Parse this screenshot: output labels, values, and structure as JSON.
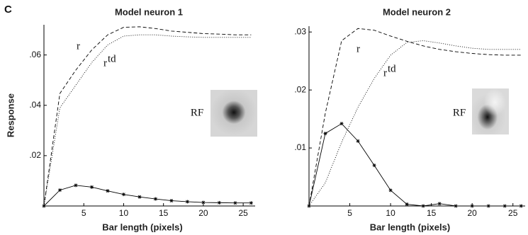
{
  "panel_label": "C",
  "chart_data": [
    {
      "type": "line",
      "title": "Model neuron 1",
      "x_label": "Bar length (pixels)",
      "y_label": "Response",
      "inset_label": "RF",
      "x": [
        0,
        2,
        4,
        6,
        8,
        10,
        12,
        14,
        16,
        18,
        20,
        22,
        24,
        26
      ],
      "xlim": [
        0,
        26.5
      ],
      "xticks": [
        5,
        10,
        15,
        20,
        25
      ],
      "ylim": [
        0,
        0.072
      ],
      "yticks": [
        {
          "value": 0.02,
          "label": ".02"
        },
        {
          "value": 0.04,
          "label": ".04"
        },
        {
          "value": 0.06,
          "label": ".06"
        }
      ],
      "series": [
        {
          "name": "r",
          "color": "#000000",
          "style": "dashed",
          "values": [
            0,
            0.0447,
            0.054,
            0.062,
            0.068,
            0.071,
            0.0712,
            0.0705,
            0.0695,
            0.069,
            0.0685,
            0.0683,
            0.068,
            0.068
          ]
        },
        {
          "name": "r",
          "superscript": "td",
          "color": "#000000",
          "style": "dotted",
          "values": [
            0,
            0.039,
            0.048,
            0.057,
            0.064,
            0.0675,
            0.068,
            0.068,
            0.0675,
            0.0672,
            0.067,
            0.067,
            0.067,
            0.067
          ]
        },
        {
          "color": "#000000",
          "style": "solid",
          "markers": true,
          "values": [
            0,
            0.0063,
            0.0082,
            0.0075,
            0.006,
            0.0046,
            0.0036,
            0.0028,
            0.0021,
            0.0017,
            0.0014,
            0.0013,
            0.0012,
            0.0012
          ]
        }
      ]
    },
    {
      "type": "line",
      "title": "Model neuron 2",
      "x_label": "Bar length (pixels)",
      "inset_label": "RF",
      "x": [
        0,
        2,
        4,
        6,
        8,
        10,
        12,
        14,
        16,
        18,
        20,
        22,
        24,
        26
      ],
      "xlim": [
        0,
        26.5
      ],
      "xticks": [
        5,
        10,
        15,
        20,
        25
      ],
      "ylim": [
        0,
        0.031
      ],
      "yticks": [
        {
          "value": 0.01,
          "label": ".01"
        },
        {
          "value": 0.02,
          "label": ".02"
        },
        {
          "value": 0.03,
          "label": ".03"
        }
      ],
      "series": [
        {
          "name": "r",
          "color": "#000000",
          "style": "dashed",
          "values": [
            0,
            0.016,
            0.0285,
            0.0306,
            0.0303,
            0.0293,
            0.0284,
            0.0276,
            0.027,
            0.0266,
            0.0263,
            0.0261,
            0.026,
            0.026
          ]
        },
        {
          "name": "r",
          "superscript": "td",
          "color": "#000000",
          "style": "dotted",
          "values": [
            0,
            0.004,
            0.011,
            0.017,
            0.022,
            0.026,
            0.0282,
            0.0285,
            0.0281,
            0.0276,
            0.0272,
            0.027,
            0.027,
            0.027
          ]
        },
        {
          "color": "#000000",
          "style": "solid",
          "markers": true,
          "values": [
            0,
            0.0125,
            0.0142,
            0.0112,
            0.007,
            0.0027,
            0.0003,
            0,
            0.0004,
            0,
            0,
            0,
            0,
            0
          ]
        }
      ]
    }
  ]
}
